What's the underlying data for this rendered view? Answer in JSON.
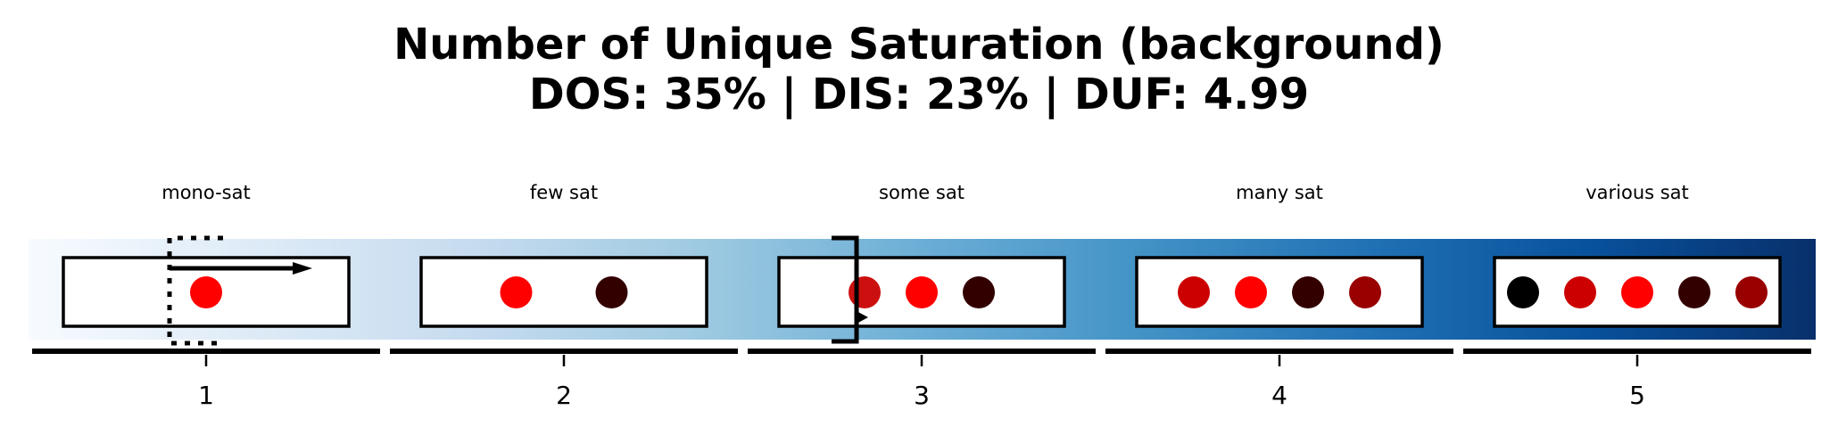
{
  "title": {
    "line1": "Number of Unique Saturation (background)",
    "line2": "DOS: 35% | DIS: 23% | DUF: 4.99"
  },
  "chart_data": {
    "type": "scale",
    "background_colormap": "Blues",
    "categories": [
      "1",
      "2",
      "3",
      "4",
      "5"
    ],
    "group_labels": [
      "mono-sat",
      "few sat",
      "some sat",
      "many sat",
      "various sat"
    ],
    "swatches": [
      [
        "#ff0000"
      ],
      [
        "#ff0000",
        "#330000"
      ],
      [
        "#cc1010",
        "#ff0000",
        "#330000"
      ],
      [
        "#cc0000",
        "#ff0000",
        "#330000",
        "#990000"
      ],
      [
        "#000000",
        "#cc0000",
        "#ff0000",
        "#330000",
        "#990000"
      ]
    ],
    "markers": {
      "dotted_bracket_category": 1,
      "arrow_category": 1,
      "square_bracket_category": 3
    }
  },
  "colors": {
    "gradient": [
      "#f7fbff",
      "#deebf7",
      "#c6dbef",
      "#9ecae1",
      "#6baed6",
      "#4292c6",
      "#2171b5",
      "#08519c",
      "#08306b"
    ],
    "box_fill": "#ffffff",
    "box_stroke": "#000000",
    "axis": "#000000"
  }
}
